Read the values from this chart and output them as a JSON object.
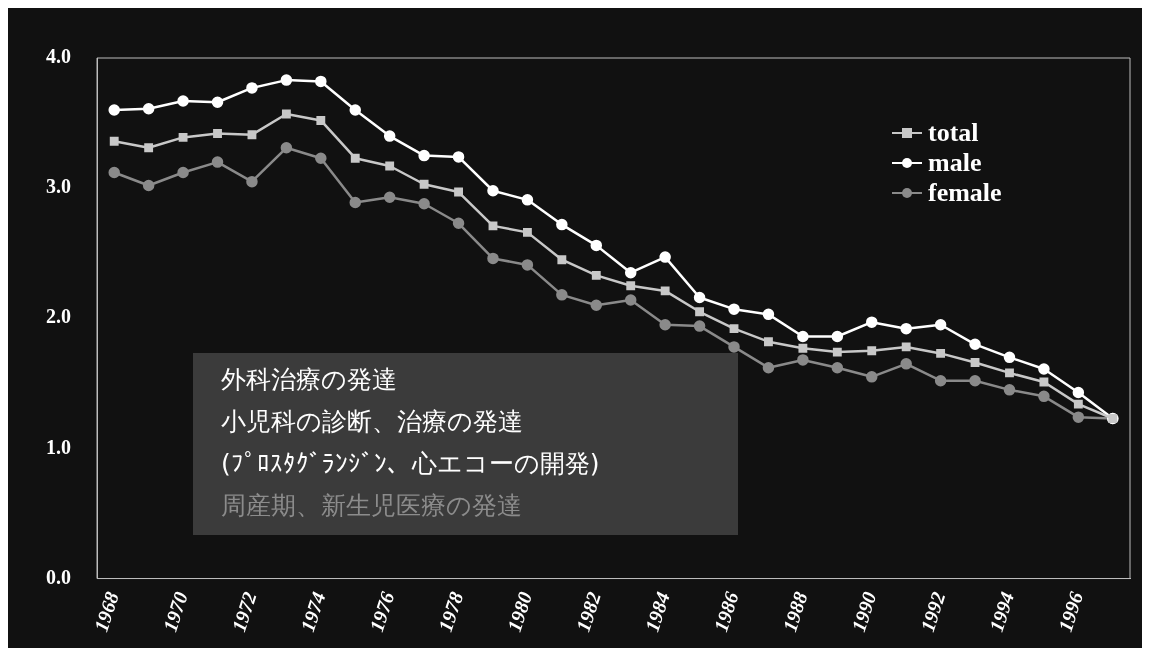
{
  "chart_data": {
    "type": "line",
    "categories": [
      "1968",
      null,
      "1970",
      null,
      "1972",
      null,
      "1974",
      null,
      "1976",
      null,
      "1978",
      null,
      "1980",
      null,
      "1982",
      null,
      "1984",
      null,
      "1986",
      null,
      "1988",
      null,
      "1990",
      null,
      "1992",
      null,
      "1994",
      null,
      "1996",
      null
    ],
    "series": [
      {
        "name": "total",
        "color": "#c8c8c8",
        "marker": "square",
        "values": [
          3.36,
          3.31,
          3.39,
          3.42,
          3.41,
          3.57,
          3.52,
          3.23,
          3.17,
          3.03,
          2.97,
          2.71,
          2.66,
          2.45,
          2.33,
          2.25,
          2.21,
          2.05,
          1.92,
          1.82,
          1.77,
          1.74,
          1.75,
          1.78,
          1.73,
          1.66,
          1.58,
          1.51,
          1.34,
          1.23
        ]
      },
      {
        "name": "male",
        "color": "#ffffff",
        "marker": "circle",
        "values": [
          3.6,
          3.61,
          3.67,
          3.66,
          3.77,
          3.83,
          3.82,
          3.6,
          3.4,
          3.25,
          3.24,
          2.98,
          2.91,
          2.72,
          2.56,
          2.35,
          2.47,
          2.16,
          2.07,
          2.03,
          1.86,
          1.86,
          1.97,
          1.92,
          1.95,
          1.8,
          1.7,
          1.61,
          1.43,
          1.23
        ]
      },
      {
        "name": "female",
        "color": "#8a8a8a",
        "marker": "circle",
        "values": [
          3.12,
          3.02,
          3.12,
          3.2,
          3.05,
          3.31,
          3.23,
          2.89,
          2.93,
          2.88,
          2.73,
          2.46,
          2.41,
          2.18,
          2.1,
          2.14,
          1.95,
          1.94,
          1.78,
          1.62,
          1.68,
          1.62,
          1.55,
          1.65,
          1.52,
          1.52,
          1.45,
          1.4,
          1.24,
          1.23
        ]
      }
    ],
    "ylim": [
      0,
      4
    ],
    "yticks": [
      {
        "value": 0,
        "label": "0.0"
      },
      {
        "value": 1,
        "label": "1.0"
      },
      {
        "value": 2,
        "label": "2.0"
      },
      {
        "value": 3,
        "label": "3.0"
      },
      {
        "value": 4,
        "label": "4.0"
      }
    ],
    "legend": "top right",
    "annotations": [
      "外科治療の発達",
      "小児科の診断、治療の発達",
      "(ﾌﾟﾛｽﾀｸﾞﾗﾝｼﾞﾝ、心エコーの開発)",
      "周産期、新生児医療の発達"
    ]
  }
}
